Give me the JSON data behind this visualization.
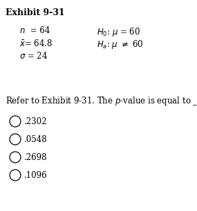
{
  "title": "Exhibit 9-31",
  "choices": [
    ".2302",
    ".0548",
    ".2698",
    ".1096"
  ],
  "bg_color": "#ffffff",
  "text_color": "#000000",
  "font_size": 8.5,
  "title_font_size": 9.0
}
